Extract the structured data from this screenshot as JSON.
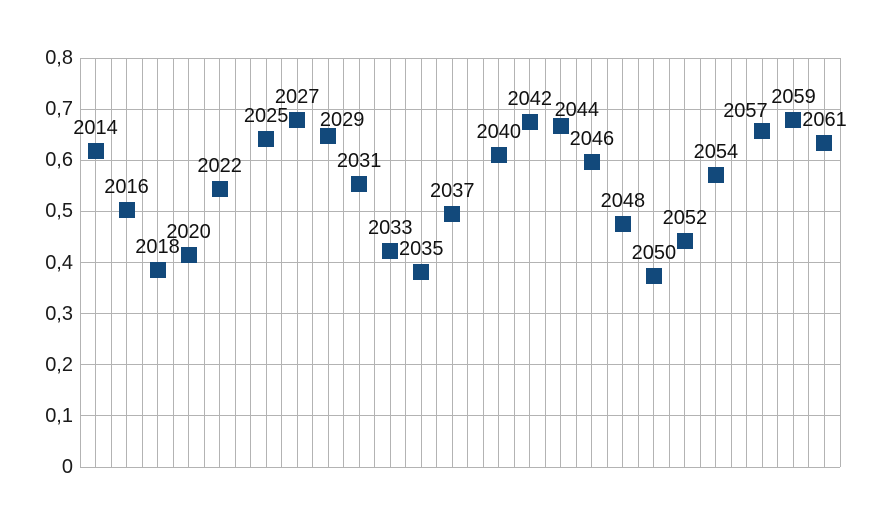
{
  "chart_data": {
    "type": "scatter",
    "title": "",
    "marker": "square",
    "marker_size_px": 16,
    "legend": false,
    "grid": "both",
    "point_label_position": "above",
    "xlim": [
      2013,
      2062
    ],
    "ylim": [
      0,
      0.8
    ],
    "x_grid_step": 1,
    "y_grid_step": 0.1,
    "y_tick_labels": [
      "0",
      "0,1",
      "0,2",
      "0,3",
      "0,4",
      "0,5",
      "0,6",
      "0,7",
      "0,8"
    ],
    "x_tick_labels": [],
    "x": [
      2014,
      2016,
      2018,
      2020,
      2022,
      2025,
      2027,
      2029,
      2031,
      2033,
      2035,
      2037,
      2040,
      2042,
      2044,
      2046,
      2048,
      2050,
      2052,
      2054,
      2057,
      2059,
      2061
    ],
    "y": [
      0.618,
      0.503,
      0.385,
      0.414,
      0.544,
      0.642,
      0.678,
      0.647,
      0.553,
      0.423,
      0.381,
      0.494,
      0.611,
      0.675,
      0.667,
      0.597,
      0.476,
      0.374,
      0.442,
      0.572,
      0.658,
      0.678,
      0.633
    ],
    "point_labels": [
      "2014",
      "2016",
      "2018",
      "2020",
      "2022",
      "2025",
      "2027",
      "2029",
      "2031",
      "2033",
      "2035",
      "2037",
      "2040",
      "2042",
      "2044",
      "2046",
      "2048",
      "2050",
      "2052",
      "2054",
      "2057",
      "2059",
      "2061"
    ],
    "label_pixel_offsets": {
      "2029": [
        14,
        7
      ],
      "2044": [
        16,
        7
      ],
      "2057": [
        -17,
        3
      ]
    },
    "colors": {
      "marker": "#12497B",
      "grid": "#b3b3b3",
      "axis": "#b3b3b3",
      "text": "#111111",
      "background": "#ffffff"
    }
  }
}
